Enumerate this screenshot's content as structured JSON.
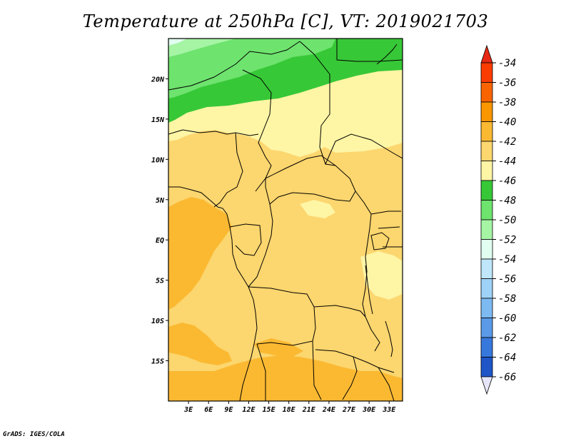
{
  "title": "Temperature at 250hPa [C], VT: 2019021703",
  "credit": "GrADS: IGES/COLA",
  "map": {
    "lon_range": [
      0,
      35
    ],
    "lat_range": [
      -20,
      25
    ],
    "lat_labels": [
      {
        "lat": 20,
        "text": "20N"
      },
      {
        "lat": 15,
        "text": "15N"
      },
      {
        "lat": 10,
        "text": "10N"
      },
      {
        "lat": 5,
        "text": "5N"
      },
      {
        "lat": 0,
        "text": "EQ"
      },
      {
        "lat": -5,
        "text": "5S"
      },
      {
        "lat": -10,
        "text": "10S"
      },
      {
        "lat": -15,
        "text": "15S"
      }
    ],
    "lon_labels": [
      {
        "lon": 3,
        "text": "3E"
      },
      {
        "lon": 6,
        "text": "6E"
      },
      {
        "lon": 9,
        "text": "9E"
      },
      {
        "lon": 12,
        "text": "12E"
      },
      {
        "lon": 15,
        "text": "15E"
      },
      {
        "lon": 18,
        "text": "18E"
      },
      {
        "lon": 21,
        "text": "21E"
      },
      {
        "lon": 24,
        "text": "24E"
      },
      {
        "lon": 27,
        "text": "27E"
      },
      {
        "lon": 30,
        "text": "30E"
      },
      {
        "lon": 33,
        "text": "33E"
      }
    ]
  },
  "colorbar": {
    "levels": [
      "-34",
      "-36",
      "-38",
      "-40",
      "-42",
      "-44",
      "-46",
      "-48",
      "-50",
      "-52",
      "-54",
      "-56",
      "-58",
      "-60",
      "-62",
      "-64",
      "-66"
    ],
    "colors": [
      "#fa3c00",
      "#fa6400",
      "#fa9600",
      "#fbb932",
      "#fcd66e",
      "#fef5a5",
      "#37c837",
      "#6ee36e",
      "#a5f5a5",
      "#e1fff0",
      "#bfe6fa",
      "#9ed2f8",
      "#7dbaf2",
      "#5a9ae8",
      "#3778dc",
      "#1e56c8",
      "#0f2a8c"
    ],
    "top_color": "#e62814",
    "bottom_color": "#e6e6fa"
  }
}
